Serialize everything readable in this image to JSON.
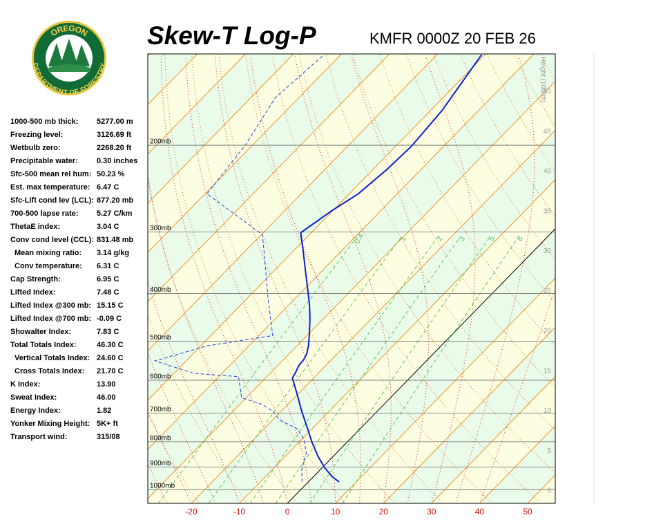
{
  "logo": {
    "top": "OREGON",
    "bottom": "DEPARTMENT OF FORESTRY"
  },
  "stats": [
    {
      "label": "1000-500 mb thick:",
      "value": "5277.00 m"
    },
    {
      "label": "Freezing level:",
      "value": "3126.69 ft"
    },
    {
      "label": "Wetbulb zero:",
      "value": "2268.20 ft"
    },
    {
      "label": "Precipitable water:",
      "value": "0.30 inches"
    },
    {
      "label": "Sfc-500 mean rel hum:",
      "value": "50.23 %"
    },
    {
      "label": "Est. max temperature:",
      "value": "6.47 C"
    },
    {
      "label": "Sfc-Lift cond lev (LCL):",
      "value": "877.20 mb"
    },
    {
      "label": "700-500 lapse rate:",
      "value": "5.27 C/km"
    },
    {
      "label": "ThetaE index:",
      "value": "3.04 C"
    },
    {
      "label": "Conv cond level (CCL):",
      "value": "831.48 mb"
    },
    {
      "label": "Mean mixing ratio:",
      "value": "3.14 g/kg",
      "indent": true
    },
    {
      "label": "Conv temperature:",
      "value": "6.31 C",
      "indent": true
    },
    {
      "label": "Cap Strength:",
      "value": "6.95 C"
    },
    {
      "label": "Lifted Index:",
      "value": "7.48 C"
    },
    {
      "label": "Lifted Index @300 mb:",
      "value": "15.15 C"
    },
    {
      "label": "Lifted Index @700 mb:",
      "value": "-0.09 C"
    },
    {
      "label": "Showalter Index:",
      "value": "7.83 C"
    },
    {
      "label": "Total Totals Index:",
      "value": "46.30 C"
    },
    {
      "label": "Vertical Totals Index:",
      "value": "24.60 C",
      "indent": true
    },
    {
      "label": "Cross Totals Index:",
      "value": "21.70 C",
      "indent": true
    },
    {
      "label": "K Index:",
      "value": "13.90"
    },
    {
      "label": "Sweat Index:",
      "value": "46.00"
    },
    {
      "label": "Energy Index:",
      "value": "1.82"
    },
    {
      "label": "Yonker Mixing Height:",
      "value": "5K+ ft"
    },
    {
      "label": "Transport wind:",
      "value": "315/08"
    }
  ],
  "chart_data": {
    "type": "skewt",
    "title": "Skew-T Log-P",
    "subtitle": "KMFR 0000Z 20 FEB 26",
    "xlim": [
      -29.05,
      55.75
    ],
    "xticks": [
      -20,
      -10,
      0,
      10,
      20,
      30,
      40,
      50
    ],
    "ylim": [
      1067,
      130.5
    ],
    "ylog": true,
    "yticks": [
      {
        "value": 200,
        "label": "200mb"
      },
      {
        "value": 300,
        "label": "300mb"
      },
      {
        "value": 400,
        "label": "400mb"
      },
      {
        "value": 500,
        "label": "500mb"
      },
      {
        "value": 600,
        "label": "600mb"
      },
      {
        "value": 700,
        "label": "700mb"
      },
      {
        "value": 800,
        "label": "800mb"
      },
      {
        "value": 900,
        "label": "900mb"
      },
      {
        "value": 1000,
        "label": "1000mb"
      }
    ],
    "y2label": "Height (1000ft)",
    "y2lim": [
      -1.56,
      54.72
    ],
    "y2ticks": [
      0,
      5,
      10,
      15,
      20,
      25,
      30,
      35,
      40,
      45,
      50
    ],
    "mixing_ratios": [
      0.4,
      1,
      2,
      3,
      5,
      8
    ],
    "mixing_color": "#5cc35c",
    "temperature": {
      "color": "#0a1ed6",
      "pressure": [
        965,
        943,
        902,
        856,
        803,
        752,
        694,
        640,
        594,
        581,
        560,
        545,
        531,
        511,
        487,
        449,
        421,
        395,
        358,
        325,
        301,
        272,
        251,
        224,
        201,
        170,
        131
      ],
      "values": [
        6.4,
        4.0,
        0.4,
        -3.2,
        -7.2,
        -11.0,
        -15.7,
        -20.2,
        -24.4,
        -24.8,
        -25.6,
        -25.8,
        -26.3,
        -27.6,
        -29.5,
        -32.9,
        -35.8,
        -38.9,
        -43.7,
        -48.4,
        -52.2,
        -50.2,
        -48.1,
        -47.1,
        -46.7,
        -47.6,
        -50.7
      ]
    },
    "dewpoint": {
      "color": "#2a3ed6",
      "pressure": [
        965,
        913,
        843,
        790,
        752,
        724,
        694,
        672,
        651,
        590,
        581,
        548,
        511,
        487,
        449,
        407,
        304,
        251,
        200,
        160,
        131
      ],
      "values": [
        -1.3,
        -3.8,
        -6.3,
        -9.6,
        -13.2,
        -18.4,
        -21.7,
        -25.3,
        -31.0,
        -35.9,
        -45.9,
        -56.5,
        -48.7,
        -37.1,
        -41.1,
        -45.9,
        -59.7,
        -79.6,
        -81.5,
        -84.9,
        -83.5
      ]
    }
  }
}
